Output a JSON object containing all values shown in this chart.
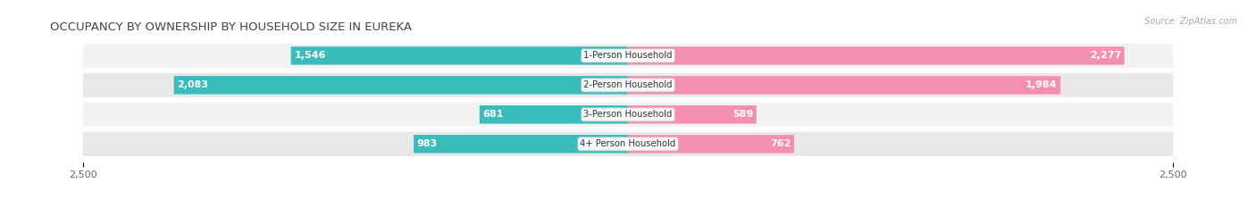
{
  "title": "OCCUPANCY BY OWNERSHIP BY HOUSEHOLD SIZE IN EUREKA",
  "source": "Source: ZipAtlas.com",
  "categories": [
    "1-Person Household",
    "2-Person Household",
    "3-Person Household",
    "4+ Person Household"
  ],
  "owner_values": [
    1546,
    2083,
    681,
    983
  ],
  "renter_values": [
    2277,
    1984,
    589,
    762
  ],
  "max_axis": 2500,
  "owner_color": "#3bbcbc",
  "renter_color": "#f48fb1",
  "row_bg_light": "#f2f2f2",
  "row_bg_dark": "#e8e8e8",
  "title_fontsize": 9.5,
  "label_fontsize": 8,
  "tick_fontsize": 8,
  "bar_height": 0.62,
  "inside_threshold": 300
}
